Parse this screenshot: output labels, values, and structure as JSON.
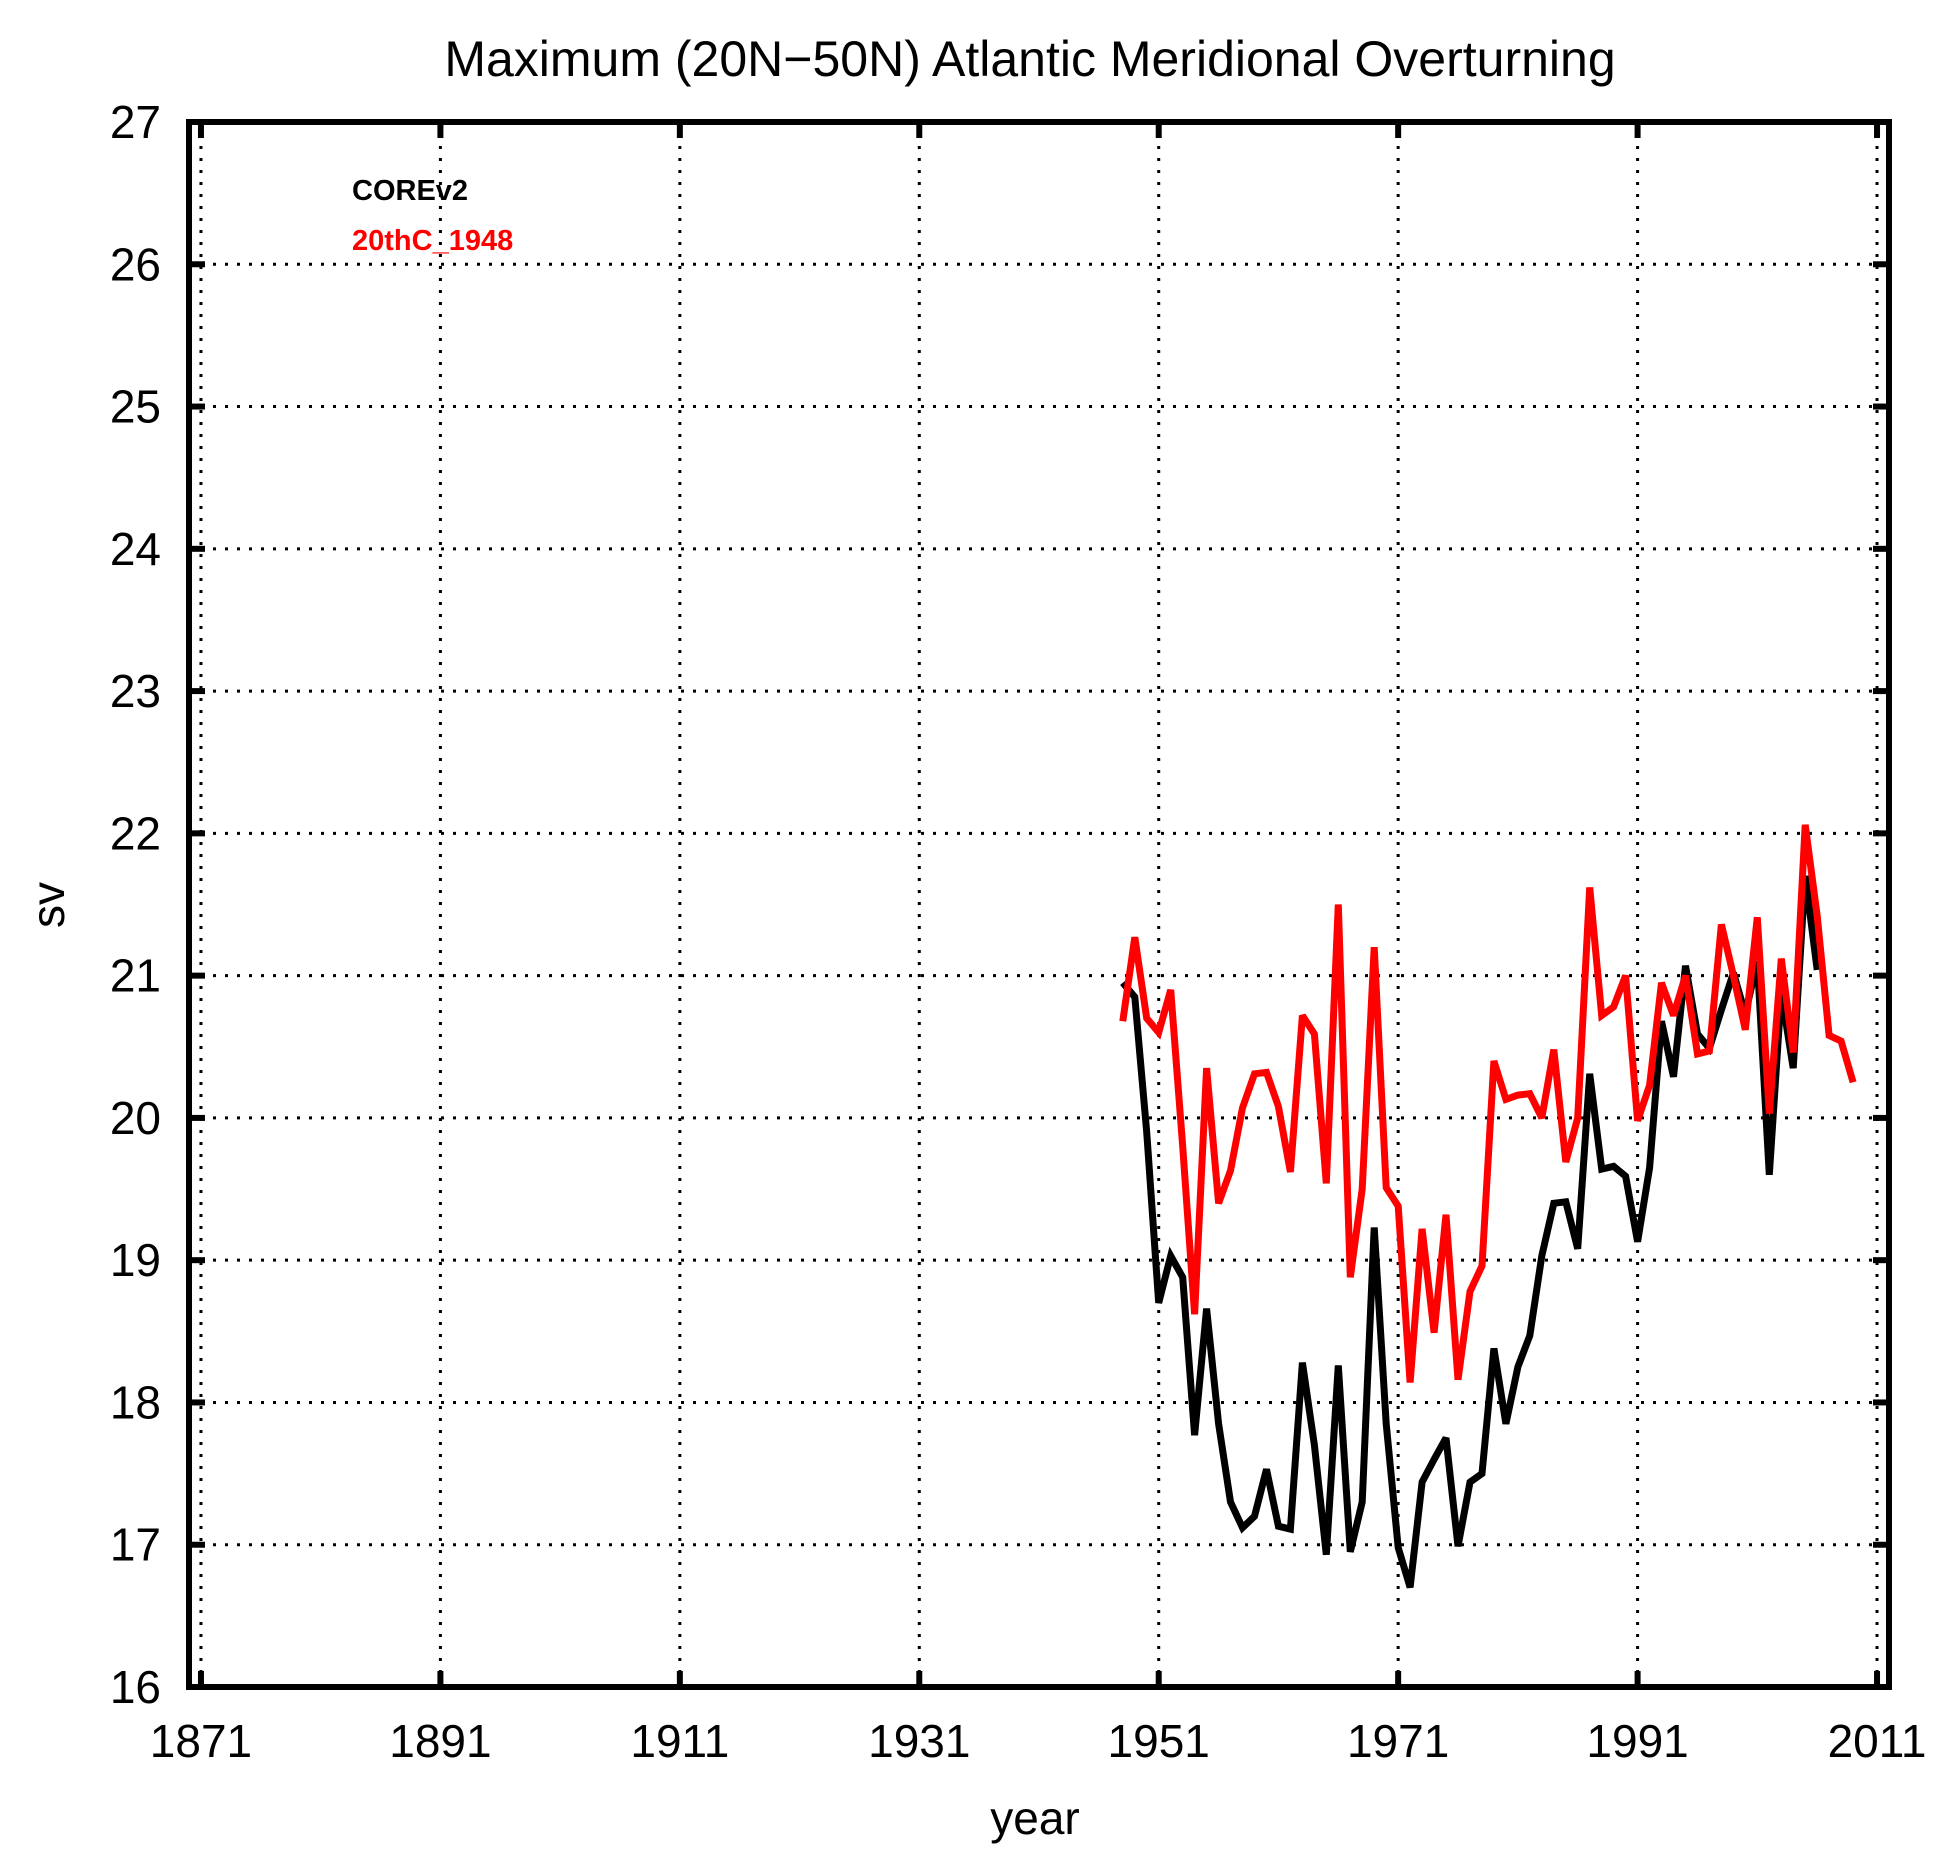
{
  "chart_data": {
    "type": "line",
    "title": "Maximum (20N−50N) Atlantic Meridional Overturning",
    "xlabel": "year",
    "ylabel": "sv",
    "xlim": [
      1870,
      2012
    ],
    "ylim": [
      16,
      27
    ],
    "xticks": [
      1871,
      1891,
      1911,
      1931,
      1951,
      1971,
      1991,
      2011
    ],
    "yticks": [
      16,
      17,
      18,
      19,
      20,
      21,
      22,
      23,
      24,
      25,
      26,
      27
    ],
    "grid": true,
    "legend_position": "top-left",
    "series": [
      {
        "name": "COREv2",
        "color": "#000000",
        "x": [
          1948,
          1949,
          1950,
          1951,
          1952,
          1953,
          1954,
          1955,
          1956,
          1957,
          1958,
          1959,
          1960,
          1961,
          1962,
          1963,
          1964,
          1965,
          1966,
          1967,
          1968,
          1969,
          1970,
          1971,
          1972,
          1973,
          1974,
          1975,
          1976,
          1977,
          1978,
          1979,
          1980,
          1981,
          1982,
          1983,
          1984,
          1985,
          1986,
          1987,
          1988,
          1989,
          1990,
          1991,
          1992,
          1993,
          1994,
          1995,
          1996,
          1997,
          1998,
          1999,
          2000,
          2001,
          2002,
          2003,
          2004,
          2005,
          2006,
          2007
        ],
        "values": [
          20.95,
          20.85,
          19.9,
          18.7,
          19.03,
          18.88,
          17.77,
          18.66,
          17.85,
          17.3,
          17.12,
          17.2,
          17.53,
          17.13,
          17.11,
          18.28,
          17.7,
          16.93,
          18.26,
          16.95,
          17.3,
          19.23,
          17.85,
          16.98,
          16.7,
          17.44,
          17.6,
          17.75,
          16.99,
          17.44,
          17.5,
          18.38,
          17.85,
          18.25,
          18.47,
          19.03,
          19.4,
          19.41,
          19.08,
          20.31,
          19.64,
          19.66,
          19.59,
          19.13,
          19.65,
          20.68,
          20.29,
          21.07,
          20.59,
          20.49,
          20.76,
          21.02,
          20.73,
          21.1,
          19.6,
          20.88,
          20.35,
          21.7,
          21.04,
          null
        ]
      },
      {
        "name": "20thC_1948",
        "color": "#ff0000",
        "x": [
          1948,
          1949,
          1950,
          1951,
          1952,
          1953,
          1954,
          1955,
          1956,
          1957,
          1958,
          1959,
          1960,
          1961,
          1962,
          1963,
          1964,
          1965,
          1966,
          1967,
          1968,
          1969,
          1970,
          1971,
          1972,
          1973,
          1974,
          1975,
          1976,
          1977,
          1978,
          1979,
          1980,
          1981,
          1982,
          1983,
          1984,
          1985,
          1986,
          1987,
          1988,
          1989,
          1990,
          1991,
          1992,
          1993,
          1994,
          1995,
          1996,
          1997,
          1998,
          1999,
          2000,
          2001,
          2002,
          2003,
          2004,
          2005,
          2006,
          2007,
          2008,
          2009
        ],
        "values": [
          20.68,
          21.27,
          20.7,
          20.6,
          20.9,
          19.8,
          18.62,
          20.35,
          19.4,
          19.63,
          20.07,
          20.31,
          20.32,
          20.08,
          19.62,
          20.72,
          20.59,
          19.54,
          21.5,
          18.88,
          19.5,
          21.2,
          19.51,
          19.38,
          18.14,
          19.22,
          18.49,
          19.32,
          18.16,
          18.78,
          18.96,
          20.4,
          20.13,
          20.16,
          20.17,
          20.0,
          20.48,
          19.69,
          20.0,
          21.62,
          20.72,
          20.78,
          21.0,
          19.98,
          20.23,
          20.95,
          20.72,
          21.0,
          20.45,
          20.47,
          21.36,
          21.0,
          20.62,
          21.41,
          20.03,
          21.12,
          20.46,
          22.06,
          21.42,
          20.58,
          20.54,
          20.25
        ]
      }
    ]
  }
}
